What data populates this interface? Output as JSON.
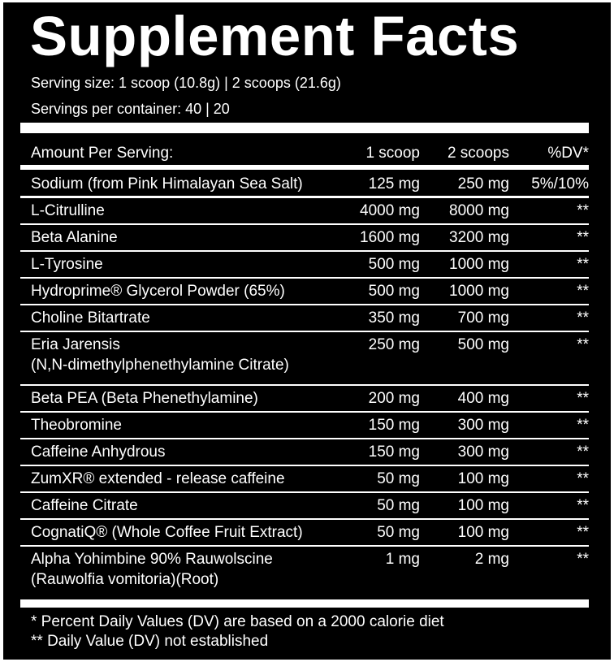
{
  "title": "Supplement Facts",
  "serving_size": "Serving size: 1 scoop (10.8g) | 2 scoops (21.6g)",
  "servings_per_container": "Servings per container: 40 | 20",
  "header": {
    "amount": "Amount Per Serving:",
    "col1": "1 scoop",
    "col2": "2 scoops",
    "col3": "%DV*"
  },
  "rows": [
    {
      "name": "Sodium (from Pink Himalayan Sea Salt)",
      "name2": "",
      "col1": "125 mg",
      "col2": "250 mg",
      "dv": "5%/10%"
    },
    {
      "name": "L-Citrulline",
      "name2": "",
      "col1": "4000 mg",
      "col2": "8000 mg",
      "dv": "**"
    },
    {
      "name": "Beta Alanine",
      "name2": "",
      "col1": "1600 mg",
      "col2": "3200 mg",
      "dv": "**"
    },
    {
      "name": "L-Tyrosine",
      "name2": "",
      "col1": "500 mg",
      "col2": "1000 mg",
      "dv": "**"
    },
    {
      "name": "Hydroprime® Glycerol Powder (65%)",
      "name2": "",
      "col1": "500 mg",
      "col2": "1000 mg",
      "dv": "**"
    },
    {
      "name": "Choline Bitartrate",
      "name2": "",
      "col1": "350 mg",
      "col2": "700 mg",
      "dv": "**"
    },
    {
      "name": "Eria Jarensis",
      "name2": "(N,N-dimethylphenethylamine Citrate)",
      "col1": "250 mg",
      "col2": "500 mg",
      "dv": "**"
    },
    {
      "name": "Beta PEA (Beta Phenethylamine)",
      "name2": "",
      "col1": "200 mg",
      "col2": "400 mg",
      "dv": "**"
    },
    {
      "name": "Theobromine",
      "name2": "",
      "col1": "150 mg",
      "col2": "300 mg",
      "dv": "**"
    },
    {
      "name": "Caffeine Anhydrous",
      "name2": "",
      "col1": "150 mg",
      "col2": "300 mg",
      "dv": "**"
    },
    {
      "name": "ZumXR®   extended - release caffeine",
      "name2": "",
      "col1": "50 mg",
      "col2": "100 mg",
      "dv": "**"
    },
    {
      "name": "Caffeine Citrate",
      "name2": "",
      "col1": "50 mg",
      "col2": "100 mg",
      "dv": "**"
    },
    {
      "name": "CognatiQ® (Whole Coffee Fruit Extract)",
      "name2": "",
      "col1": "50 mg",
      "col2": "100 mg",
      "dv": "**"
    },
    {
      "name": "Alpha Yohimbine 90% Rauwolscine",
      "name2": "(Rauwolfia vomitoria)(Root)",
      "col1": "1 mg",
      "col2": "2 mg",
      "dv": "**"
    }
  ],
  "footnotes": [
    "* Percent Daily Values (DV) are based on a 2000 calorie diet",
    "** Daily Value (DV) not established"
  ],
  "colors": {
    "background": "#000000",
    "text": "#ffffff"
  }
}
